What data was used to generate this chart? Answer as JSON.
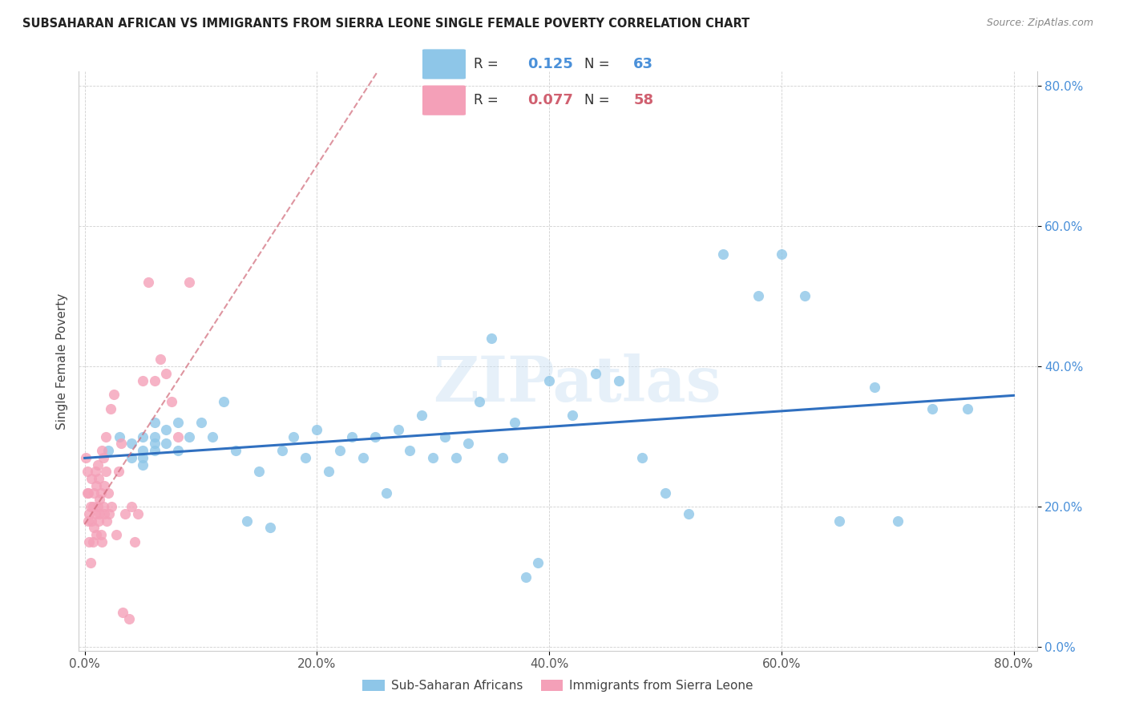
{
  "title": "SUBSAHARAN AFRICAN VS IMMIGRANTS FROM SIERRA LEONE SINGLE FEMALE POVERTY CORRELATION CHART",
  "source": "Source: ZipAtlas.com",
  "ylabel": "Single Female Poverty",
  "blue_R": 0.125,
  "blue_N": 63,
  "pink_R": 0.077,
  "pink_N": 58,
  "blue_color": "#8ec6e8",
  "pink_color": "#f4a0b8",
  "blue_line_color": "#3070c0",
  "pink_line_color": "#d06878",
  "legend_label_blue": "Sub-Saharan Africans",
  "legend_label_pink": "Immigrants from Sierra Leone",
  "blue_scatter_x": [
    0.02,
    0.03,
    0.04,
    0.04,
    0.05,
    0.05,
    0.05,
    0.05,
    0.06,
    0.06,
    0.06,
    0.06,
    0.07,
    0.07,
    0.08,
    0.08,
    0.09,
    0.1,
    0.11,
    0.12,
    0.13,
    0.14,
    0.15,
    0.16,
    0.17,
    0.18,
    0.19,
    0.2,
    0.21,
    0.22,
    0.23,
    0.24,
    0.25,
    0.26,
    0.27,
    0.28,
    0.29,
    0.3,
    0.31,
    0.32,
    0.33,
    0.34,
    0.35,
    0.36,
    0.37,
    0.38,
    0.39,
    0.4,
    0.42,
    0.44,
    0.46,
    0.48,
    0.5,
    0.52,
    0.55,
    0.58,
    0.6,
    0.62,
    0.65,
    0.68,
    0.7,
    0.73,
    0.76
  ],
  "blue_scatter_y": [
    0.28,
    0.3,
    0.29,
    0.27,
    0.28,
    0.3,
    0.27,
    0.26,
    0.3,
    0.32,
    0.28,
    0.29,
    0.31,
    0.29,
    0.32,
    0.28,
    0.3,
    0.32,
    0.3,
    0.35,
    0.28,
    0.18,
    0.25,
    0.17,
    0.28,
    0.3,
    0.27,
    0.31,
    0.25,
    0.28,
    0.3,
    0.27,
    0.3,
    0.22,
    0.31,
    0.28,
    0.33,
    0.27,
    0.3,
    0.27,
    0.29,
    0.35,
    0.44,
    0.27,
    0.32,
    0.1,
    0.12,
    0.38,
    0.33,
    0.39,
    0.38,
    0.27,
    0.22,
    0.19,
    0.56,
    0.5,
    0.56,
    0.5,
    0.18,
    0.37,
    0.18,
    0.34,
    0.34
  ],
  "pink_scatter_x": [
    0.001,
    0.002,
    0.002,
    0.003,
    0.003,
    0.004,
    0.004,
    0.005,
    0.005,
    0.006,
    0.006,
    0.007,
    0.007,
    0.008,
    0.008,
    0.009,
    0.009,
    0.01,
    0.01,
    0.011,
    0.011,
    0.012,
    0.012,
    0.013,
    0.013,
    0.014,
    0.014,
    0.015,
    0.015,
    0.016,
    0.016,
    0.017,
    0.017,
    0.018,
    0.018,
    0.019,
    0.02,
    0.021,
    0.022,
    0.023,
    0.025,
    0.027,
    0.029,
    0.031,
    0.033,
    0.035,
    0.038,
    0.04,
    0.043,
    0.046,
    0.05,
    0.055,
    0.06,
    0.065,
    0.07,
    0.075,
    0.08,
    0.09
  ],
  "pink_scatter_y": [
    0.27,
    0.22,
    0.25,
    0.18,
    0.22,
    0.19,
    0.15,
    0.2,
    0.12,
    0.18,
    0.24,
    0.15,
    0.2,
    0.17,
    0.22,
    0.25,
    0.19,
    0.16,
    0.23,
    0.2,
    0.26,
    0.18,
    0.24,
    0.21,
    0.19,
    0.16,
    0.22,
    0.28,
    0.15,
    0.2,
    0.27,
    0.23,
    0.19,
    0.25,
    0.3,
    0.18,
    0.22,
    0.19,
    0.34,
    0.2,
    0.36,
    0.16,
    0.25,
    0.29,
    0.05,
    0.19,
    0.04,
    0.2,
    0.15,
    0.19,
    0.38,
    0.52,
    0.38,
    0.41,
    0.39,
    0.35,
    0.3,
    0.52
  ]
}
